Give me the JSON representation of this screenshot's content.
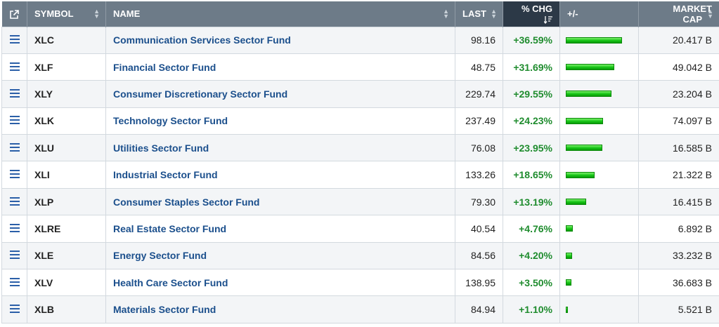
{
  "header": {
    "external_icon": "external-link-icon",
    "symbol": "SYMBOL",
    "name": "NAME",
    "last": "LAST",
    "pct_chg": "% CHG",
    "plus_minus": "+/-",
    "market_cap": "MARKET CAP"
  },
  "sorted_column": "pct_chg",
  "bar_max_pct": 36.59,
  "rows": [
    {
      "symbol": "XLC",
      "name": "Communication Services Sector Fund",
      "last": "98.16",
      "pct": "+36.59%",
      "pct_value": 36.59,
      "mcap": "20.417 B"
    },
    {
      "symbol": "XLF",
      "name": "Financial Sector Fund",
      "last": "48.75",
      "pct": "+31.69%",
      "pct_value": 31.69,
      "mcap": "49.042 B"
    },
    {
      "symbol": "XLY",
      "name": "Consumer Discretionary Sector Fund",
      "last": "229.74",
      "pct": "+29.55%",
      "pct_value": 29.55,
      "mcap": "23.204 B"
    },
    {
      "symbol": "XLK",
      "name": "Technology Sector Fund",
      "last": "237.49",
      "pct": "+24.23%",
      "pct_value": 24.23,
      "mcap": "74.097 B"
    },
    {
      "symbol": "XLU",
      "name": "Utilities Sector Fund",
      "last": "76.08",
      "pct": "+23.95%",
      "pct_value": 23.95,
      "mcap": "16.585 B"
    },
    {
      "symbol": "XLI",
      "name": "Industrial Sector Fund",
      "last": "133.26",
      "pct": "+18.65%",
      "pct_value": 18.65,
      "mcap": "21.322 B"
    },
    {
      "symbol": "XLP",
      "name": "Consumer Staples Sector Fund",
      "last": "79.30",
      "pct": "+13.19%",
      "pct_value": 13.19,
      "mcap": "16.415 B"
    },
    {
      "symbol": "XLRE",
      "name": "Real Estate Sector Fund",
      "last": "40.54",
      "pct": "+4.76%",
      "pct_value": 4.76,
      "mcap": "6.892 B"
    },
    {
      "symbol": "XLE",
      "name": "Energy Sector Fund",
      "last": "84.56",
      "pct": "+4.20%",
      "pct_value": 4.2,
      "mcap": "33.232 B"
    },
    {
      "symbol": "XLV",
      "name": "Health Care Sector Fund",
      "last": "138.95",
      "pct": "+3.50%",
      "pct_value": 3.5,
      "mcap": "36.683 B"
    },
    {
      "symbol": "XLB",
      "name": "Materials Sector Fund",
      "last": "84.94",
      "pct": "+1.10%",
      "pct_value": 1.1,
      "mcap": "5.521 B"
    }
  ],
  "colors": {
    "header_bg": "#6d7b88",
    "sorted_header_bg": "#2c3947",
    "link": "#1b4f8c",
    "positive": "#1f8c2e",
    "bar_green": "#15c415"
  }
}
